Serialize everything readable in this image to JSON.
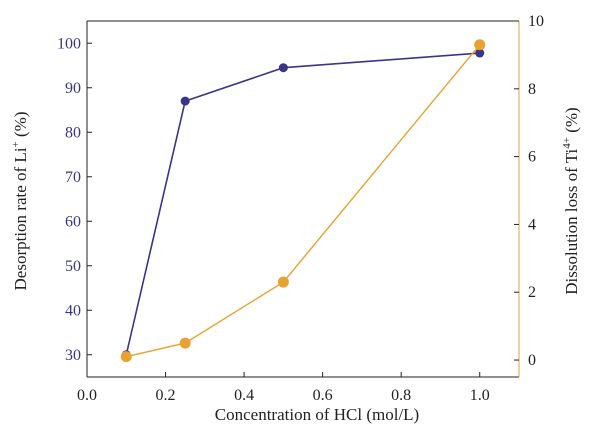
{
  "colors": {
    "left_series": "#3a3588",
    "right_series": "#e8a232",
    "left_ticks": "#3a3588",
    "axis": "#222222"
  },
  "chart_data": {
    "type": "line",
    "x": [
      0.1,
      0.25,
      0.5,
      1.0
    ],
    "xlabel": "Concentration of HCl (mol/L)",
    "xlim": [
      0.0,
      1.1
    ],
    "xticks": [
      "0.0",
      "0.2",
      "0.4",
      "0.6",
      "0.8",
      "1.0"
    ],
    "ylabel_left": {
      "main": "Desorption rate of Li",
      "sup": "+",
      "tail": " (%)"
    },
    "ylim_left": [
      25,
      105
    ],
    "yticks_left": [
      "30",
      "40",
      "50",
      "60",
      "70",
      "80",
      "90",
      "100"
    ],
    "ylabel_right": {
      "main": "Dissolution loss of Ti",
      "sup": "4+",
      "tail": " (%)"
    },
    "ylim_right": [
      -0.5,
      10
    ],
    "yticks_right": [
      "0",
      "2",
      "4",
      "6",
      "8",
      "10"
    ],
    "grid": false,
    "series": [
      {
        "axis": "left",
        "values": [
          30.0,
          87.0,
          94.5,
          97.8
        ]
      },
      {
        "axis": "right",
        "values": [
          0.1,
          0.5,
          2.3,
          9.3
        ]
      }
    ]
  }
}
